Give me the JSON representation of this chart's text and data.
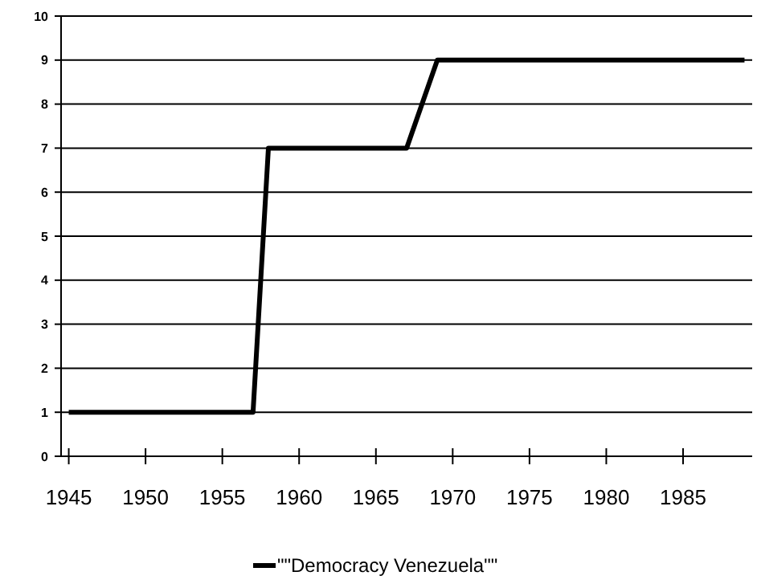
{
  "chart_data": {
    "type": "line",
    "x": [
      1945,
      1957,
      1958,
      1967,
      1969,
      1989
    ],
    "series": [
      {
        "name": "\"\"Democracy Venezuela\"\"",
        "color": "#000000",
        "values": [
          1,
          1,
          7,
          7,
          9,
          9
        ]
      }
    ],
    "xlim": [
      1944.5,
      1989.5
    ],
    "xticks": [
      1945,
      1950,
      1955,
      1960,
      1965,
      1970,
      1975,
      1980,
      1985
    ],
    "ylim": [
      0,
      10
    ],
    "yticks": [
      0,
      1,
      2,
      3,
      4,
      5,
      6,
      7,
      8,
      9,
      10
    ],
    "grid": "y",
    "legend": "bottom",
    "marker": "none",
    "line_style": "solid"
  }
}
